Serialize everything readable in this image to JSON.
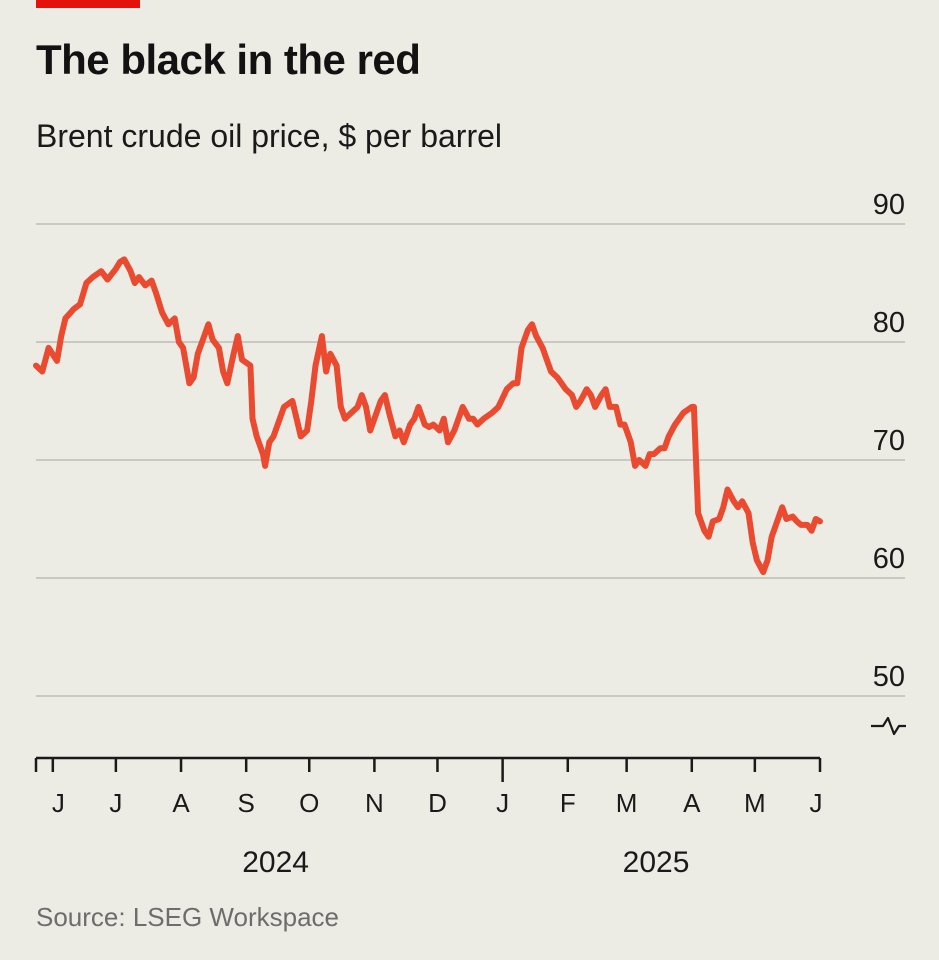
{
  "colors": {
    "background": "#ecebe4",
    "brand_red": "#e3120b",
    "series_line": "#ea4a2f",
    "gridline": "#c9c8c1",
    "axis": "#1a1a1a"
  },
  "icons": {
    "axis_break": "axis-break-icon"
  },
  "chart_data": {
    "type": "line",
    "title": "The black in the red",
    "subtitle": "Brent crude oil price, $ per barrel",
    "source": "Source: LSEG Workspace",
    "ylim": [
      50,
      90
    ],
    "y_ticks": [
      90,
      80,
      70,
      60,
      50
    ],
    "y_axis_position": "right",
    "y_axis_break": true,
    "grid": true,
    "xlim": [
      "2024-05-24",
      "2025-06-01"
    ],
    "x_tick_dates": [
      "2024-06-01",
      "2024-07-01",
      "2024-08-01",
      "2024-09-01",
      "2024-10-01",
      "2024-11-01",
      "2024-12-01",
      "2025-01-01",
      "2025-02-01",
      "2025-03-01",
      "2025-04-01",
      "2025-05-01",
      "2025-06-01"
    ],
    "month_labels": [
      "J",
      "J",
      "A",
      "S",
      "O",
      "N",
      "D",
      "J",
      "F",
      "M",
      "A",
      "M",
      "J"
    ],
    "year_labels": [
      {
        "label": "2024",
        "center": "2024-09-15"
      },
      {
        "label": "2025",
        "center": "2025-03-15"
      }
    ],
    "series": [
      {
        "name": "",
        "color": "#ea4a2f",
        "points": [
          [
            "2024-05-24",
            78.0
          ],
          [
            "2024-05-27",
            77.5
          ],
          [
            "2024-05-30",
            79.5
          ],
          [
            "2024-06-03",
            78.4
          ],
          [
            "2024-06-05",
            80.5
          ],
          [
            "2024-06-07",
            82.0
          ],
          [
            "2024-06-11",
            82.8
          ],
          [
            "2024-06-14",
            83.2
          ],
          [
            "2024-06-17",
            85.0
          ],
          [
            "2024-06-20",
            85.5
          ],
          [
            "2024-06-24",
            86.0
          ],
          [
            "2024-06-27",
            85.3
          ],
          [
            "2024-07-01",
            86.2
          ],
          [
            "2024-07-03",
            86.8
          ],
          [
            "2024-07-05",
            87.0
          ],
          [
            "2024-07-08",
            86.0
          ],
          [
            "2024-07-10",
            85.0
          ],
          [
            "2024-07-12",
            85.5
          ],
          [
            "2024-07-15",
            84.8
          ],
          [
            "2024-07-18",
            85.2
          ],
          [
            "2024-07-20",
            84.2
          ],
          [
            "2024-07-23",
            82.5
          ],
          [
            "2024-07-26",
            81.5
          ],
          [
            "2024-07-29",
            82.0
          ],
          [
            "2024-07-31",
            80.0
          ],
          [
            "2024-08-02",
            79.5
          ],
          [
            "2024-08-05",
            76.5
          ],
          [
            "2024-08-07",
            77.0
          ],
          [
            "2024-08-09",
            79.0
          ],
          [
            "2024-08-12",
            80.5
          ],
          [
            "2024-08-14",
            81.5
          ],
          [
            "2024-08-16",
            80.2
          ],
          [
            "2024-08-19",
            79.5
          ],
          [
            "2024-08-21",
            77.5
          ],
          [
            "2024-08-23",
            76.5
          ],
          [
            "2024-08-26",
            79.0
          ],
          [
            "2024-08-28",
            80.5
          ],
          [
            "2024-08-30",
            78.5
          ],
          [
            "2024-09-03",
            78.0
          ],
          [
            "2024-09-04",
            73.5
          ],
          [
            "2024-09-06",
            72.0
          ],
          [
            "2024-09-09",
            70.5
          ],
          [
            "2024-09-10",
            69.5
          ],
          [
            "2024-09-12",
            71.5
          ],
          [
            "2024-09-14",
            72.0
          ],
          [
            "2024-09-17",
            73.5
          ],
          [
            "2024-09-19",
            74.5
          ],
          [
            "2024-09-23",
            75.0
          ],
          [
            "2024-09-25",
            73.5
          ],
          [
            "2024-09-27",
            72.0
          ],
          [
            "2024-09-30",
            72.5
          ],
          [
            "2024-10-02",
            75.0
          ],
          [
            "2024-10-04",
            78.0
          ],
          [
            "2024-10-07",
            80.5
          ],
          [
            "2024-10-09",
            77.5
          ],
          [
            "2024-10-11",
            79.0
          ],
          [
            "2024-10-14",
            78.0
          ],
          [
            "2024-10-16",
            74.5
          ],
          [
            "2024-10-18",
            73.5
          ],
          [
            "2024-10-21",
            74.0
          ],
          [
            "2024-10-24",
            74.5
          ],
          [
            "2024-10-26",
            75.5
          ],
          [
            "2024-10-28",
            74.5
          ],
          [
            "2024-10-30",
            72.5
          ],
          [
            "2024-11-01",
            73.5
          ],
          [
            "2024-11-04",
            75.0
          ],
          [
            "2024-11-06",
            75.5
          ],
          [
            "2024-11-08",
            74.0
          ],
          [
            "2024-11-11",
            72.0
          ],
          [
            "2024-11-13",
            72.5
          ],
          [
            "2024-11-15",
            71.5
          ],
          [
            "2024-11-18",
            73.0
          ],
          [
            "2024-11-20",
            73.5
          ],
          [
            "2024-11-22",
            74.5
          ],
          [
            "2024-11-25",
            73.0
          ],
          [
            "2024-11-27",
            72.8
          ],
          [
            "2024-11-29",
            73.0
          ],
          [
            "2024-12-02",
            72.5
          ],
          [
            "2024-12-04",
            73.5
          ],
          [
            "2024-12-06",
            71.5
          ],
          [
            "2024-12-09",
            72.5
          ],
          [
            "2024-12-11",
            73.5
          ],
          [
            "2024-12-13",
            74.5
          ],
          [
            "2024-12-16",
            73.5
          ],
          [
            "2024-12-18",
            73.5
          ],
          [
            "2024-12-20",
            73.0
          ],
          [
            "2024-12-23",
            73.5
          ],
          [
            "2024-12-27",
            74.0
          ],
          [
            "2024-12-30",
            74.5
          ],
          [
            "2025-01-03",
            76.0
          ],
          [
            "2025-01-06",
            76.5
          ],
          [
            "2025-01-08",
            76.5
          ],
          [
            "2025-01-10",
            79.5
          ],
          [
            "2025-01-13",
            81.0
          ],
          [
            "2025-01-15",
            81.5
          ],
          [
            "2025-01-17",
            80.5
          ],
          [
            "2025-01-20",
            79.5
          ],
          [
            "2025-01-22",
            78.5
          ],
          [
            "2025-01-24",
            77.5
          ],
          [
            "2025-01-27",
            77.0
          ],
          [
            "2025-01-29",
            76.5
          ],
          [
            "2025-01-31",
            76.0
          ],
          [
            "2025-02-03",
            75.5
          ],
          [
            "2025-02-05",
            74.5
          ],
          [
            "2025-02-07",
            75.0
          ],
          [
            "2025-02-10",
            76.0
          ],
          [
            "2025-02-12",
            75.5
          ],
          [
            "2025-02-14",
            74.5
          ],
          [
            "2025-02-17",
            75.5
          ],
          [
            "2025-02-19",
            76.0
          ],
          [
            "2025-02-21",
            74.5
          ],
          [
            "2025-02-24",
            74.5
          ],
          [
            "2025-02-26",
            73.0
          ],
          [
            "2025-02-28",
            73.0
          ],
          [
            "2025-03-03",
            71.5
          ],
          [
            "2025-03-05",
            69.5
          ],
          [
            "2025-03-07",
            70.0
          ],
          [
            "2025-03-10",
            69.5
          ],
          [
            "2025-03-12",
            70.5
          ],
          [
            "2025-03-14",
            70.5
          ],
          [
            "2025-03-17",
            71.0
          ],
          [
            "2025-03-19",
            71.0
          ],
          [
            "2025-03-21",
            72.0
          ],
          [
            "2025-03-24",
            73.0
          ],
          [
            "2025-03-26",
            73.5
          ],
          [
            "2025-03-28",
            74.0
          ],
          [
            "2025-04-01",
            74.5
          ],
          [
            "2025-04-02",
            74.5
          ],
          [
            "2025-04-03",
            70.0
          ],
          [
            "2025-04-04",
            65.5
          ],
          [
            "2025-04-07",
            64.0
          ],
          [
            "2025-04-09",
            63.5
          ],
          [
            "2025-04-11",
            64.8
          ],
          [
            "2025-04-14",
            65.0
          ],
          [
            "2025-04-16",
            66.0
          ],
          [
            "2025-04-18",
            67.5
          ],
          [
            "2025-04-21",
            66.5
          ],
          [
            "2025-04-23",
            66.0
          ],
          [
            "2025-04-25",
            66.5
          ],
          [
            "2025-04-28",
            65.5
          ],
          [
            "2025-04-30",
            63.0
          ],
          [
            "2025-05-02",
            61.5
          ],
          [
            "2025-05-05",
            60.5
          ],
          [
            "2025-05-07",
            61.5
          ],
          [
            "2025-05-09",
            63.5
          ],
          [
            "2025-05-12",
            65.0
          ],
          [
            "2025-05-14",
            66.0
          ],
          [
            "2025-05-16",
            65.0
          ],
          [
            "2025-05-19",
            65.2
          ],
          [
            "2025-05-21",
            64.8
          ],
          [
            "2025-05-23",
            64.5
          ],
          [
            "2025-05-26",
            64.5
          ],
          [
            "2025-05-28",
            64.0
          ],
          [
            "2025-05-30",
            65.0
          ],
          [
            "2025-06-01",
            64.8
          ]
        ]
      }
    ]
  }
}
